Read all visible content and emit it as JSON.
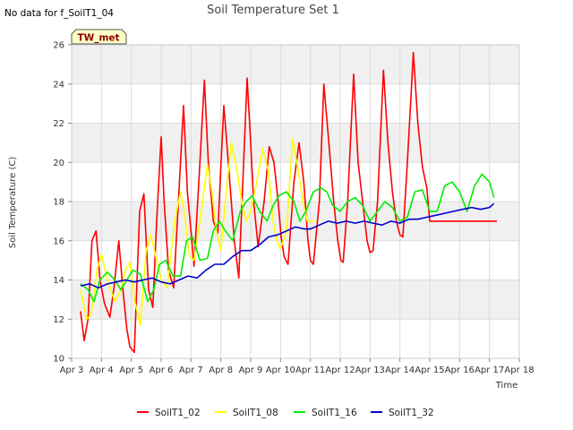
{
  "header": {
    "title": "Soil Temperature Set 1",
    "no_data_note": "No data for f_SoilT1_04",
    "badge": "TW_met"
  },
  "colors": {
    "band": "#f0f0f0",
    "grid": "#dcdcdc",
    "badge_fill": "#ffffc8"
  },
  "chart_data": {
    "type": "line",
    "title": "Soil Temperature Set 1",
    "xlabel": "Time",
    "ylabel": "Soil Temperature (C)",
    "x_ticks": [
      "Apr 3",
      "Apr 4",
      "Apr 5",
      "Apr 6",
      "Apr 7",
      "Apr 8",
      "Apr 9",
      "Apr 10",
      "Apr 11",
      "Apr 12",
      "Apr 13",
      "Apr 14",
      "Apr 15",
      "Apr 16",
      "Apr 17",
      "Apr 18"
    ],
    "y_ticks": [
      10,
      12,
      14,
      16,
      18,
      20,
      22,
      24,
      26
    ],
    "xlim": [
      3,
      18
    ],
    "ylim": [
      10,
      26
    ],
    "grid": true,
    "legend_position": "bottom",
    "series": [
      {
        "name": "SoilT1_02",
        "color": "#ff0000",
        "x": [
          3.3,
          3.42,
          3.55,
          3.68,
          3.82,
          3.95,
          4.1,
          4.28,
          4.42,
          4.58,
          4.72,
          4.85,
          4.95,
          5.1,
          5.28,
          5.42,
          5.58,
          5.72,
          5.85,
          6.0,
          6.1,
          6.25,
          6.42,
          6.58,
          6.75,
          6.88,
          7.0,
          7.1,
          7.3,
          7.45,
          7.58,
          7.75,
          7.9,
          8.0,
          8.1,
          8.25,
          8.45,
          8.6,
          8.75,
          8.88,
          9.0,
          9.1,
          9.25,
          9.45,
          9.62,
          9.78,
          9.92,
          10.02,
          10.12,
          10.25,
          10.45,
          10.62,
          10.78,
          10.92,
          11.0,
          11.1,
          11.3,
          11.45,
          11.62,
          11.78,
          11.92,
          12.02,
          12.1,
          12.25,
          12.45,
          12.6,
          12.75,
          12.9,
          13.0,
          13.1,
          13.25,
          13.45,
          13.6,
          13.75,
          13.88,
          14.0,
          14.1,
          14.25,
          14.45,
          14.6,
          14.75,
          14.9,
          15.0,
          15.1,
          15.3,
          15.45,
          15.6,
          15.75,
          15.9,
          16.0,
          16.1,
          16.3,
          16.45,
          16.6,
          16.75,
          16.9,
          17.0,
          17.1,
          17.25
        ],
        "values": [
          12.4,
          10.9,
          12.0,
          16.0,
          16.5,
          14.0,
          12.8,
          12.1,
          13.6,
          16.0,
          13.5,
          11.5,
          10.6,
          10.3,
          17.5,
          18.4,
          13.5,
          12.6,
          17.0,
          21.3,
          18.0,
          14.5,
          13.6,
          18.0,
          22.9,
          18.5,
          16.5,
          14.7,
          20.0,
          24.2,
          20.0,
          17.0,
          16.4,
          19.8,
          22.9,
          20.0,
          16.0,
          14.1,
          19.5,
          24.3,
          21.0,
          18.0,
          15.7,
          18.0,
          20.8,
          20.0,
          18.0,
          16.2,
          15.2,
          14.8,
          19.0,
          21.0,
          19.0,
          16.0,
          15.0,
          14.8,
          18.0,
          24.0,
          21.0,
          18.0,
          16.0,
          15.0,
          14.9,
          18.0,
          24.5,
          20.0,
          18.0,
          16.0,
          15.4,
          15.5,
          18.0,
          24.7,
          21.0,
          18.5,
          17.0,
          16.3,
          16.2,
          20.0,
          25.6,
          22.0,
          19.8,
          18.7,
          17.0,
          17.0,
          17.0,
          17.0,
          17.0,
          17.0,
          17.0,
          17.0,
          17.0,
          17.0,
          17.0,
          17.0,
          17.0,
          17.0,
          17.0,
          17.0,
          17.0
        ]
      },
      {
        "name": "SoilT1_08",
        "color": "#ffff00",
        "x": [
          3.3,
          3.5,
          3.65,
          3.85,
          4.0,
          4.2,
          4.45,
          4.65,
          4.8,
          4.95,
          5.1,
          5.3,
          5.5,
          5.65,
          5.85,
          6.0,
          6.2,
          6.45,
          6.65,
          6.8,
          6.95,
          7.1,
          7.3,
          7.55,
          7.7,
          7.85,
          8.0,
          8.15,
          8.35,
          8.55,
          8.7,
          8.85,
          9.0,
          9.2,
          9.4,
          9.6,
          9.75,
          9.88,
          10.0,
          10.2,
          10.4,
          10.6,
          10.75,
          10.9,
          11.02,
          11.15
        ],
        "values": [
          13.5,
          12.0,
          12.2,
          14.5,
          15.3,
          14.0,
          12.9,
          13.5,
          14.5,
          14.9,
          13.0,
          11.7,
          15.5,
          16.3,
          15.0,
          14.0,
          13.6,
          17.0,
          18.5,
          17.2,
          15.2,
          15.0,
          17.0,
          19.9,
          18.5,
          16.5,
          15.5,
          18.0,
          21.0,
          19.5,
          18.0,
          17.0,
          17.5,
          19.0,
          20.7,
          19.5,
          17.0,
          16.0,
          15.6,
          16.5,
          21.2,
          19.5,
          18.0,
          17.0,
          17.0,
          17.0
        ]
      },
      {
        "name": "SoilT1_16",
        "color": "#00ee00",
        "x": [
          3.3,
          3.55,
          3.75,
          3.95,
          4.2,
          4.45,
          4.65,
          4.85,
          5.05,
          5.3,
          5.55,
          5.75,
          5.95,
          6.15,
          6.4,
          6.65,
          6.85,
          7.05,
          7.3,
          7.55,
          7.75,
          7.95,
          8.15,
          8.4,
          8.65,
          8.85,
          9.05,
          9.3,
          9.55,
          9.75,
          9.95,
          10.2,
          10.45,
          10.65,
          10.85,
          11.1,
          11.35,
          11.55,
          11.75,
          12.0,
          12.25,
          12.5,
          12.75,
          13.0,
          13.25,
          13.5,
          13.75,
          14.0,
          14.25,
          14.5,
          14.75,
          15.0,
          15.25,
          15.5,
          15.75,
          16.0,
          16.25,
          16.5,
          16.75,
          17.0,
          17.15
        ],
        "values": [
          13.8,
          13.5,
          12.9,
          14.0,
          14.4,
          14.0,
          13.5,
          14.0,
          14.5,
          14.3,
          12.9,
          13.5,
          14.8,
          15.0,
          14.2,
          14.2,
          16.0,
          16.2,
          15.0,
          15.1,
          16.5,
          17.0,
          16.5,
          16.0,
          17.5,
          18.0,
          18.3,
          17.5,
          17.0,
          17.8,
          18.3,
          18.5,
          18.0,
          17.0,
          17.5,
          18.5,
          18.7,
          18.5,
          17.8,
          17.5,
          18.0,
          18.2,
          17.8,
          17.0,
          17.5,
          18.0,
          17.7,
          17.0,
          17.2,
          18.5,
          18.6,
          17.5,
          17.5,
          18.8,
          19.0,
          18.5,
          17.5,
          18.8,
          19.4,
          19.0,
          18.2
        ]
      },
      {
        "name": "SoilT1_32",
        "color": "#0000cc",
        "x": [
          3.3,
          3.6,
          3.9,
          4.2,
          4.5,
          4.8,
          5.1,
          5.4,
          5.7,
          6.0,
          6.3,
          6.6,
          6.9,
          7.2,
          7.5,
          7.8,
          8.1,
          8.4,
          8.7,
          9.0,
          9.3,
          9.6,
          9.9,
          10.2,
          10.5,
          10.8,
          11.0,
          11.3,
          11.6,
          11.9,
          12.2,
          12.5,
          12.8,
          13.1,
          13.4,
          13.7,
          14.0,
          14.3,
          14.6,
          14.9,
          15.2,
          15.5,
          15.8,
          16.1,
          16.4,
          16.7,
          17.0,
          17.15
        ],
        "values": [
          13.7,
          13.8,
          13.6,
          13.8,
          13.9,
          14.0,
          13.9,
          14.0,
          14.1,
          13.9,
          13.8,
          14.0,
          14.2,
          14.1,
          14.5,
          14.8,
          14.8,
          15.2,
          15.5,
          15.5,
          15.8,
          16.2,
          16.3,
          16.5,
          16.7,
          16.6,
          16.6,
          16.8,
          17.0,
          16.9,
          17.0,
          16.9,
          17.0,
          16.9,
          16.8,
          17.0,
          16.9,
          17.1,
          17.1,
          17.2,
          17.3,
          17.4,
          17.5,
          17.6,
          17.7,
          17.6,
          17.7,
          17.9
        ]
      }
    ]
  }
}
